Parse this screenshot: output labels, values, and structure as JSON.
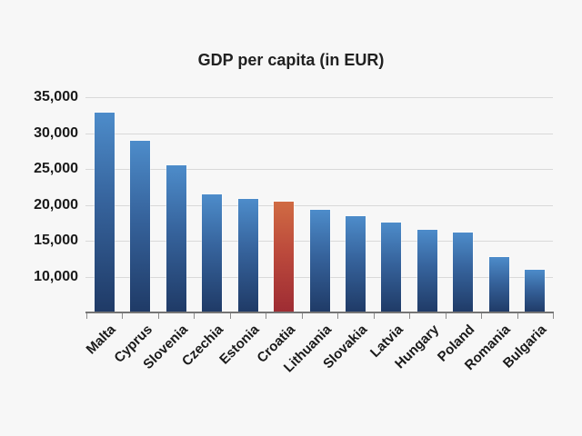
{
  "page": {
    "background": "#f7f7f7"
  },
  "chart_data": {
    "type": "bar",
    "title": "GDP per capita (in EUR)",
    "categories": [
      "Malta",
      "Cyprus",
      "Slovenia",
      "Czechia",
      "Estonia",
      "Croatia",
      "Lithuania",
      "Slovakia",
      "Latvia",
      "Hungary",
      "Poland",
      "Romania",
      "Bulgaria"
    ],
    "values": [
      32800,
      28900,
      25500,
      21400,
      20800,
      20400,
      19300,
      18400,
      17600,
      16500,
      16100,
      12700,
      11000
    ],
    "highlight_category": "Croatia",
    "highlight_index": 5,
    "xlabel": "",
    "ylabel": "",
    "ylim": [
      5000,
      35000
    ],
    "yticks": [
      10000,
      15000,
      20000,
      25000,
      30000,
      35000
    ],
    "ytick_labels": [
      "10,000",
      "15,000",
      "20,000",
      "25,000",
      "30,000",
      "35,000"
    ],
    "grid": true,
    "legend_position": "none",
    "colors": {
      "bar_top": "#4d8cca",
      "bar_mid": "#36639c",
      "bar_bottom": "#1f3a66",
      "highlight_top": "#d06b43",
      "highlight_mid": "#bc4a3c",
      "highlight_bottom": "#9e2c33",
      "gridline": "#d9d9d9",
      "axis": "#757575",
      "tick": "#8c8c8c",
      "text": "#1a1a1a",
      "background": "#f7f7f7"
    }
  }
}
